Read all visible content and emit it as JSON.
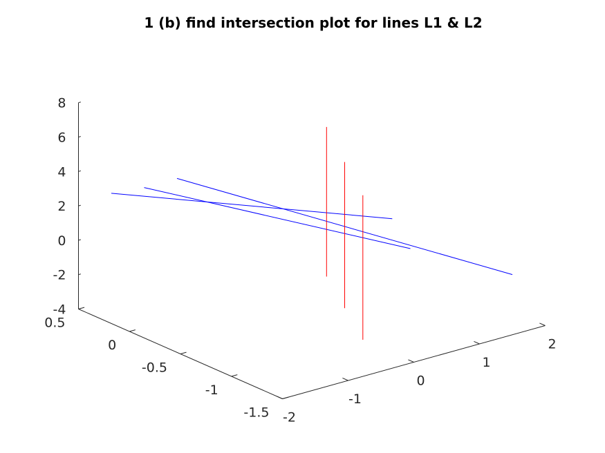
{
  "chart_data": {
    "type": "line",
    "projection": "3d",
    "title": "1 (b) find intersection plot for lines L1 & L2",
    "xlabel": "",
    "ylabel": "",
    "zlabel": "",
    "grid": false,
    "xlim": [
      -2,
      2
    ],
    "ylim": [
      -1.5,
      0.5
    ],
    "zlim": [
      -4,
      8
    ],
    "x_ticks": [
      -2,
      -1,
      0,
      1,
      2
    ],
    "x_tick_labels": [
      "-2",
      "-1",
      "0",
      "1",
      "2"
    ],
    "y_ticks": [
      -1.5,
      -1,
      -0.5,
      0,
      0.5
    ],
    "y_tick_labels": [
      "-1.5",
      "-1",
      "-0.5",
      "0",
      "0.5"
    ],
    "z_ticks": [
      -4,
      -2,
      0,
      2,
      4,
      6,
      8
    ],
    "z_tick_labels": [
      "-4",
      "-2",
      "0",
      "2",
      "4",
      "6",
      "8"
    ],
    "colors": {
      "blue": "#0000ff",
      "red": "#ff0000",
      "axis": "#262626"
    },
    "series": [
      {
        "color": "#0000ff",
        "points": [
          [
            -0.5,
            0.5,
            2.0
          ],
          [
            1.5,
            -1.5,
            -0.5
          ]
        ]
      },
      {
        "color": "#0000ff",
        "points": [
          [
            -1.0,
            0.5,
            2.0
          ],
          [
            1.5,
            -0.5,
            -1.6
          ]
        ]
      },
      {
        "color": "#0000ff",
        "points": [
          [
            -1.5,
            0.5,
            2.2
          ],
          [
            2.0,
            0.0,
            -1.7
          ]
        ]
      },
      {
        "color": "#ff0000",
        "points": [
          [
            0.0,
            -1.0,
            -4.0
          ],
          [
            0.0,
            -1.0,
            4.4
          ]
        ]
      },
      {
        "color": "#ff0000",
        "points": [
          [
            0.5,
            -0.5,
            -4.0
          ],
          [
            0.5,
            -0.5,
            4.5
          ]
        ]
      },
      {
        "color": "#ff0000",
        "points": [
          [
            1.0,
            0.0,
            -4.0
          ],
          [
            1.0,
            0.0,
            4.7
          ]
        ]
      }
    ]
  }
}
